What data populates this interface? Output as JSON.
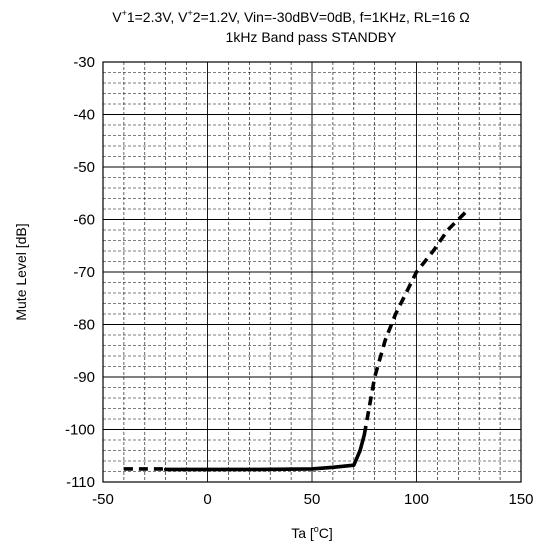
{
  "chart_data": {
    "type": "line",
    "title_line1_parts": {
      "a": "V",
      "a_sup": "+",
      "b": "1=2.3V, V",
      "b_sup": "+",
      "c": "2=1.2V, Vin=-30dBV=0dB, f=1KHz, RL=16 Ω"
    },
    "title_line2": "1kHz Band pass STANDBY",
    "xlabel_parts": {
      "pre": "Ta [",
      "sup": "o",
      "post": "C]"
    },
    "ylabel": "Mute Level [dB]",
    "xlim": [
      -50,
      150
    ],
    "ylim": [
      -110,
      -30
    ],
    "x_ticks": [
      -50,
      0,
      50,
      100,
      150
    ],
    "y_ticks": [
      -30,
      -40,
      -50,
      -60,
      -70,
      -80,
      -90,
      -100,
      -110
    ],
    "grid": true,
    "series": [
      {
        "style": "dashed",
        "points": [
          [
            -40,
            -107.5
          ],
          [
            -20,
            -107.5
          ]
        ]
      },
      {
        "style": "solid",
        "points": [
          [
            -20,
            -107.6
          ],
          [
            0,
            -107.6
          ],
          [
            25,
            -107.6
          ],
          [
            50,
            -107.5
          ],
          [
            60,
            -107.2
          ],
          [
            70,
            -106.8
          ],
          [
            73,
            -104
          ],
          [
            75,
            -101
          ]
        ]
      },
      {
        "style": "dashed",
        "points": [
          [
            75,
            -101
          ],
          [
            80,
            -90
          ],
          [
            85,
            -83
          ],
          [
            90,
            -78
          ],
          [
            95,
            -74
          ],
          [
            100,
            -70
          ],
          [
            108,
            -66
          ],
          [
            115,
            -62
          ],
          [
            125,
            -58
          ]
        ]
      }
    ]
  }
}
